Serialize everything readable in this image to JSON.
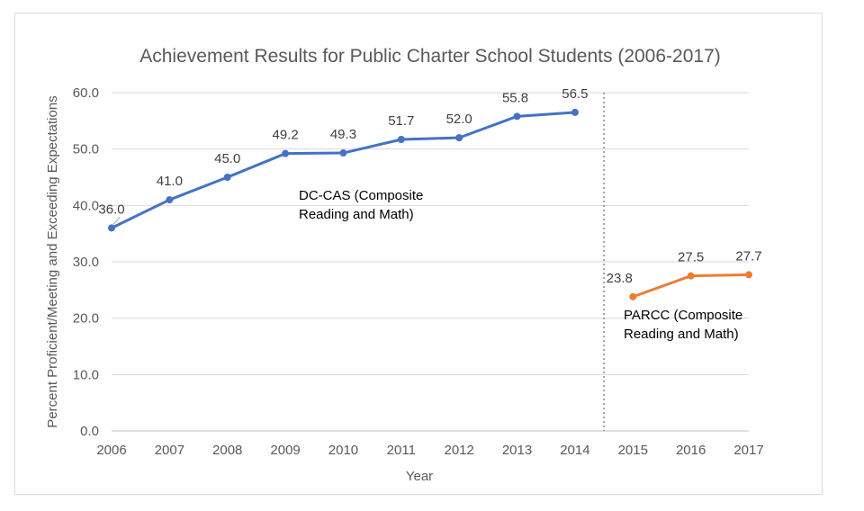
{
  "chart_data": {
    "type": "line",
    "title": "Achievement Results for Public Charter School Students (2006-2017)",
    "xlabel": "Year",
    "ylabel": "Percent Proficient/Meeting and Exceeding Expectations",
    "x": [
      "2006",
      "2007",
      "2008",
      "2009",
      "2010",
      "2011",
      "2012",
      "2013",
      "2014",
      "2015",
      "2016",
      "2017"
    ],
    "yticks": [
      "0.0",
      "10.0",
      "20.0",
      "30.0",
      "40.0",
      "50.0",
      "60.0"
    ],
    "ylim": [
      0,
      60
    ],
    "grid": true,
    "divider_between": [
      "2014",
      "2015"
    ],
    "series": [
      {
        "name": "DC-CAS (Composite Reading and Math)",
        "annotation_lines": [
          "DC-CAS (Composite",
          "Reading and Math)"
        ],
        "color": "#4472c4",
        "x": [
          "2006",
          "2007",
          "2008",
          "2009",
          "2010",
          "2011",
          "2012",
          "2013",
          "2014"
        ],
        "values": [
          36.0,
          41.0,
          45.0,
          49.2,
          49.3,
          51.7,
          52.0,
          55.8,
          56.5
        ],
        "labels": [
          "36.0",
          "41.0",
          "45.0",
          "49.2",
          "49.3",
          "51.7",
          "52.0",
          "55.8",
          "56.5"
        ]
      },
      {
        "name": "PARCC (Composite Reading and Math)",
        "annotation_lines": [
          "PARCC (Composite",
          "Reading and Math)"
        ],
        "color": "#ed7d31",
        "x": [
          "2015",
          "2016",
          "2017"
        ],
        "values": [
          23.8,
          27.5,
          27.7
        ],
        "labels": [
          "23.8",
          "27.5",
          "27.7"
        ]
      }
    ]
  }
}
